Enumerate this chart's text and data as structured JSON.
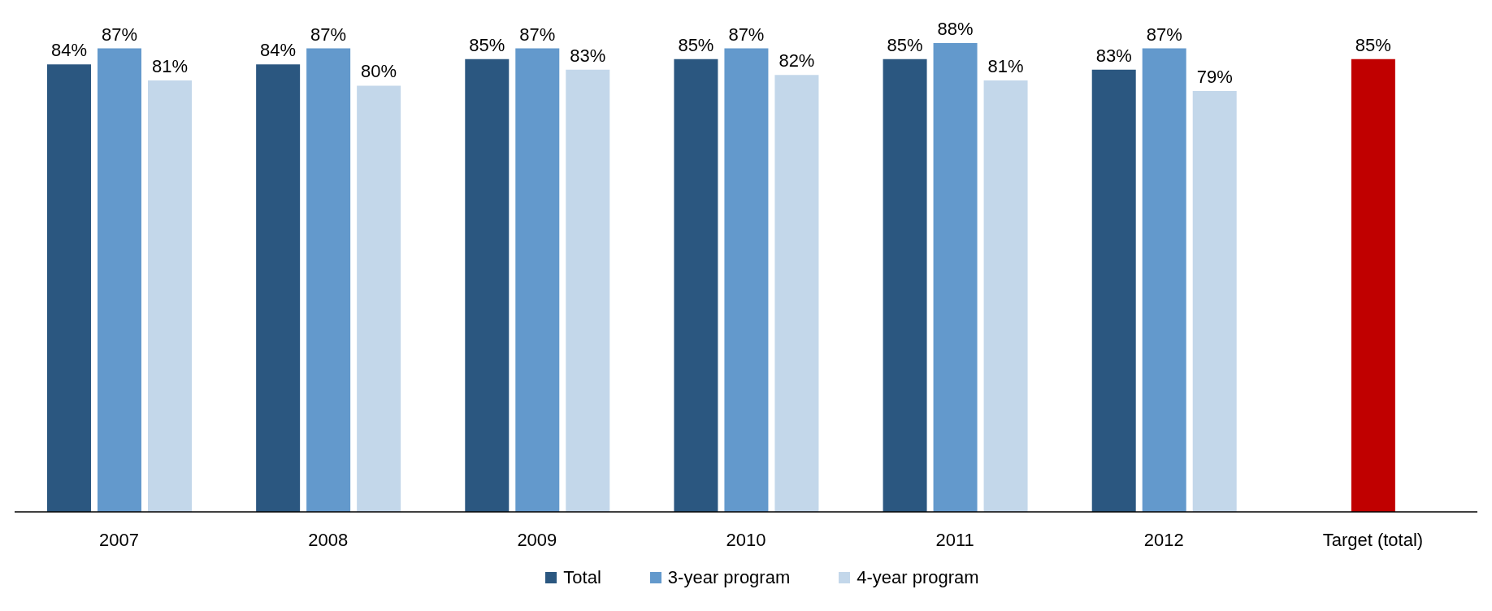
{
  "chart_data": {
    "type": "bar",
    "categories": [
      "2007",
      "2008",
      "2009",
      "2010",
      "2011",
      "2012",
      "Target (total)"
    ],
    "legend": "bottom",
    "grid": false,
    "series": [
      {
        "name": "Total",
        "color": "#2b5780",
        "values": [
          84,
          84,
          85,
          85,
          85,
          83,
          null
        ],
        "value_labels": [
          "84%",
          "84%",
          "85%",
          "85%",
          "85%",
          "83%",
          null
        ]
      },
      {
        "name": "3-year program",
        "color": "#6399cc",
        "values": [
          87,
          87,
          87,
          87,
          88,
          87,
          null
        ],
        "value_labels": [
          "87%",
          "87%",
          "87%",
          "87%",
          "88%",
          "87%",
          null
        ]
      },
      {
        "name": "4-year program",
        "color": "#c3d7ea",
        "values": [
          81,
          80,
          83,
          82,
          81,
          79,
          null
        ],
        "value_labels": [
          "81%",
          "80%",
          "83%",
          "82%",
          "81%",
          "79%",
          null
        ]
      },
      {
        "color": "#c00000",
        "values": [
          null,
          null,
          null,
          null,
          null,
          null,
          85
        ],
        "value_labels": [
          null,
          null,
          null,
          null,
          null,
          null,
          "85%"
        ]
      }
    ]
  }
}
